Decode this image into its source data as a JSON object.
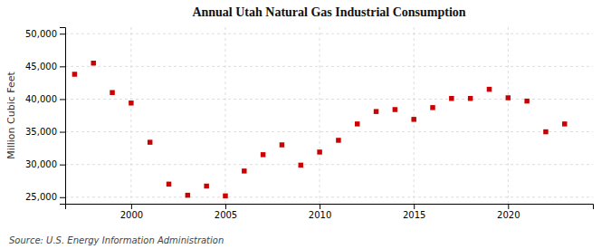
{
  "chart_data": {
    "type": "scatter",
    "title": "Annual Utah Natural Gas Industrial Consumption",
    "ylabel": "Million Cubic Feet",
    "annotations": [
      "Source: U.S. Energy Information Administration"
    ],
    "x": [
      1997,
      1998,
      1999,
      2000,
      2001,
      2002,
      2003,
      2004,
      2005,
      2006,
      2007,
      2008,
      2009,
      2010,
      2011,
      2012,
      2013,
      2014,
      2015,
      2016,
      2017,
      2018,
      2019,
      2020,
      2021,
      2022,
      2023
    ],
    "values": [
      43800,
      45500,
      41000,
      39400,
      33400,
      27000,
      25300,
      26700,
      25200,
      29000,
      31500,
      33000,
      29900,
      31900,
      33700,
      36200,
      38100,
      38400,
      36900,
      38700,
      40100,
      40100,
      41500,
      40200,
      39700,
      35000,
      36200
    ],
    "color": "#cc0000",
    "marker": "square",
    "xlim": [
      1996.5,
      2024.5
    ],
    "xticks": [
      2000,
      2005,
      2010,
      2015,
      2020
    ],
    "ylim": [
      24000,
      51000
    ],
    "yticks": [
      {
        "value": 25000,
        "label": "25,000"
      },
      {
        "value": 30000,
        "label": "30,000"
      },
      {
        "value": 35000,
        "label": "35,000"
      },
      {
        "value": 40000,
        "label": "40,000"
      },
      {
        "value": 45000,
        "label": "45,000"
      },
      {
        "value": 50000,
        "label": "50,000"
      }
    ],
    "grid": true
  }
}
